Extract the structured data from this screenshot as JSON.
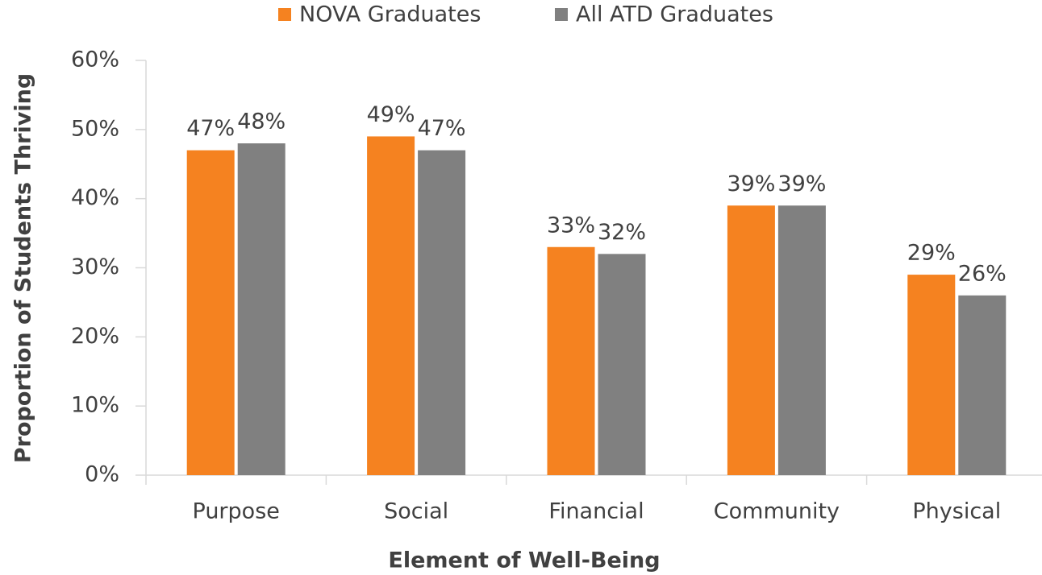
{
  "chart_data": {
    "type": "bar",
    "categories": [
      "Purpose",
      "Social",
      "Financial",
      "Community",
      "Physical"
    ],
    "series": [
      {
        "name": "NOVA Graduates",
        "color": "#f58220",
        "values": [
          47,
          49,
          33,
          39,
          29
        ],
        "value_labels": [
          "47%",
          "49%",
          "33%",
          "39%",
          "29%"
        ]
      },
      {
        "name": "All ATD Graduates",
        "color": "#808080",
        "values": [
          48,
          47,
          32,
          39,
          26
        ],
        "value_labels": [
          "48%",
          "47%",
          "32%",
          "39%",
          "26%"
        ]
      }
    ],
    "ylim": [
      0,
      60
    ],
    "yticks": [
      {
        "value": 0,
        "label": "0%"
      },
      {
        "value": 10,
        "label": "10%"
      },
      {
        "value": 20,
        "label": "20%"
      },
      {
        "value": 30,
        "label": "30%"
      },
      {
        "value": 40,
        "label": "40%"
      },
      {
        "value": 50,
        "label": "50%"
      },
      {
        "value": 60,
        "label": "60%"
      }
    ],
    "x_label": "Element of Well-Being",
    "y_label": "Proportion of Students Thriving",
    "legend": "top",
    "grid": false
  }
}
